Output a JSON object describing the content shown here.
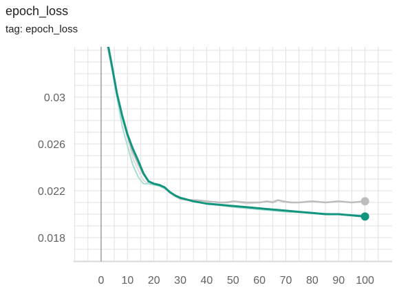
{
  "card": {
    "title": "epoch_loss",
    "tag": "tag: epoch_loss"
  },
  "chart_data": {
    "type": "line",
    "title": "epoch_loss",
    "subtitle": "tag: epoch_loss",
    "xlabel": "",
    "ylabel": "",
    "xlim": [
      -10,
      107
    ],
    "ylim": [
      0.016,
      0.0365
    ],
    "x_ticks": [
      0,
      10,
      20,
      30,
      40,
      50,
      60,
      70,
      80,
      90,
      100
    ],
    "y_ticks": [
      0.018,
      0.022,
      0.026,
      0.03
    ],
    "y_tick_labels": [
      "0.018",
      "0.022",
      "0.026",
      "0.03"
    ],
    "grid": true,
    "colors": {
      "train": "#12957f",
      "validation": "#bdbdbd",
      "train_raw": "#a8dcd2",
      "validation_raw": "#dedede",
      "zero_line": "#9e9e9e",
      "grid": "#e0e0e0"
    },
    "series": [
      {
        "key": "validation",
        "raw": true,
        "x": [
          0,
          2,
          4,
          6,
          8,
          10,
          12,
          14,
          16,
          18,
          20,
          22,
          24,
          26,
          28,
          30,
          35,
          40,
          45,
          50,
          55,
          60,
          65,
          67,
          70,
          75,
          80,
          85,
          90,
          95,
          100
        ],
        "values": [
          0.0358,
          0.0345,
          0.033,
          0.0305,
          0.0282,
          0.0265,
          0.0248,
          0.0238,
          0.0229,
          0.0226,
          0.0225,
          0.0224,
          0.0222,
          0.0218,
          0.0215,
          0.0213,
          0.0212,
          0.0211,
          0.021,
          0.0211,
          0.0209,
          0.021,
          0.0211,
          0.0212,
          0.021,
          0.021,
          0.0211,
          0.021,
          0.0211,
          0.021,
          0.0211
        ]
      },
      {
        "key": "train",
        "raw": true,
        "x": [
          0,
          2,
          4,
          6,
          8,
          10,
          12,
          14,
          16,
          18,
          20,
          22,
          24,
          26,
          28,
          30,
          40,
          50,
          60,
          70,
          80,
          90,
          100
        ],
        "values": [
          0.0362,
          0.0348,
          0.0325,
          0.03,
          0.0275,
          0.0258,
          0.0242,
          0.0232,
          0.0226,
          0.0226,
          0.0225,
          0.0224,
          0.0222,
          0.0219,
          0.0216,
          0.0214,
          0.0209,
          0.0206,
          0.0204,
          0.0202,
          0.0201,
          0.02,
          0.0199
        ]
      },
      {
        "key": "validation",
        "raw": false,
        "x": [
          0,
          2,
          4,
          6,
          8,
          10,
          12,
          14,
          16,
          18,
          20,
          22,
          24,
          26,
          28,
          30,
          33,
          36,
          40,
          45,
          48,
          50,
          55,
          60,
          63,
          65,
          67,
          69,
          72,
          75,
          80,
          85,
          90,
          95,
          100
        ],
        "values": [
          0.0363,
          0.0348,
          0.0327,
          0.0303,
          0.0283,
          0.0267,
          0.0253,
          0.0243,
          0.0234,
          0.0228,
          0.0226,
          0.0225,
          0.0223,
          0.0219,
          0.0216,
          0.0213,
          0.0212,
          0.0212,
          0.0211,
          0.021,
          0.021,
          0.0211,
          0.021,
          0.021,
          0.0211,
          0.021,
          0.0212,
          0.0211,
          0.021,
          0.021,
          0.0211,
          0.021,
          0.0211,
          0.021,
          0.0211
        ]
      },
      {
        "key": "train",
        "raw": false,
        "x": [
          0,
          2,
          4,
          6,
          8,
          10,
          12,
          14,
          16,
          18,
          20,
          22,
          24,
          26,
          28,
          30,
          35,
          40,
          45,
          50,
          55,
          60,
          65,
          70,
          75,
          80,
          85,
          90,
          95,
          100
        ],
        "values": [
          0.0368,
          0.0352,
          0.0328,
          0.0303,
          0.0284,
          0.0268,
          0.0256,
          0.0246,
          0.0235,
          0.0228,
          0.0226,
          0.0225,
          0.0223,
          0.0219,
          0.0216,
          0.0214,
          0.0211,
          0.0209,
          0.0208,
          0.0207,
          0.0206,
          0.0205,
          0.0204,
          0.0203,
          0.0202,
          0.0201,
          0.02,
          0.02,
          0.0199,
          0.0198
        ]
      }
    ]
  }
}
